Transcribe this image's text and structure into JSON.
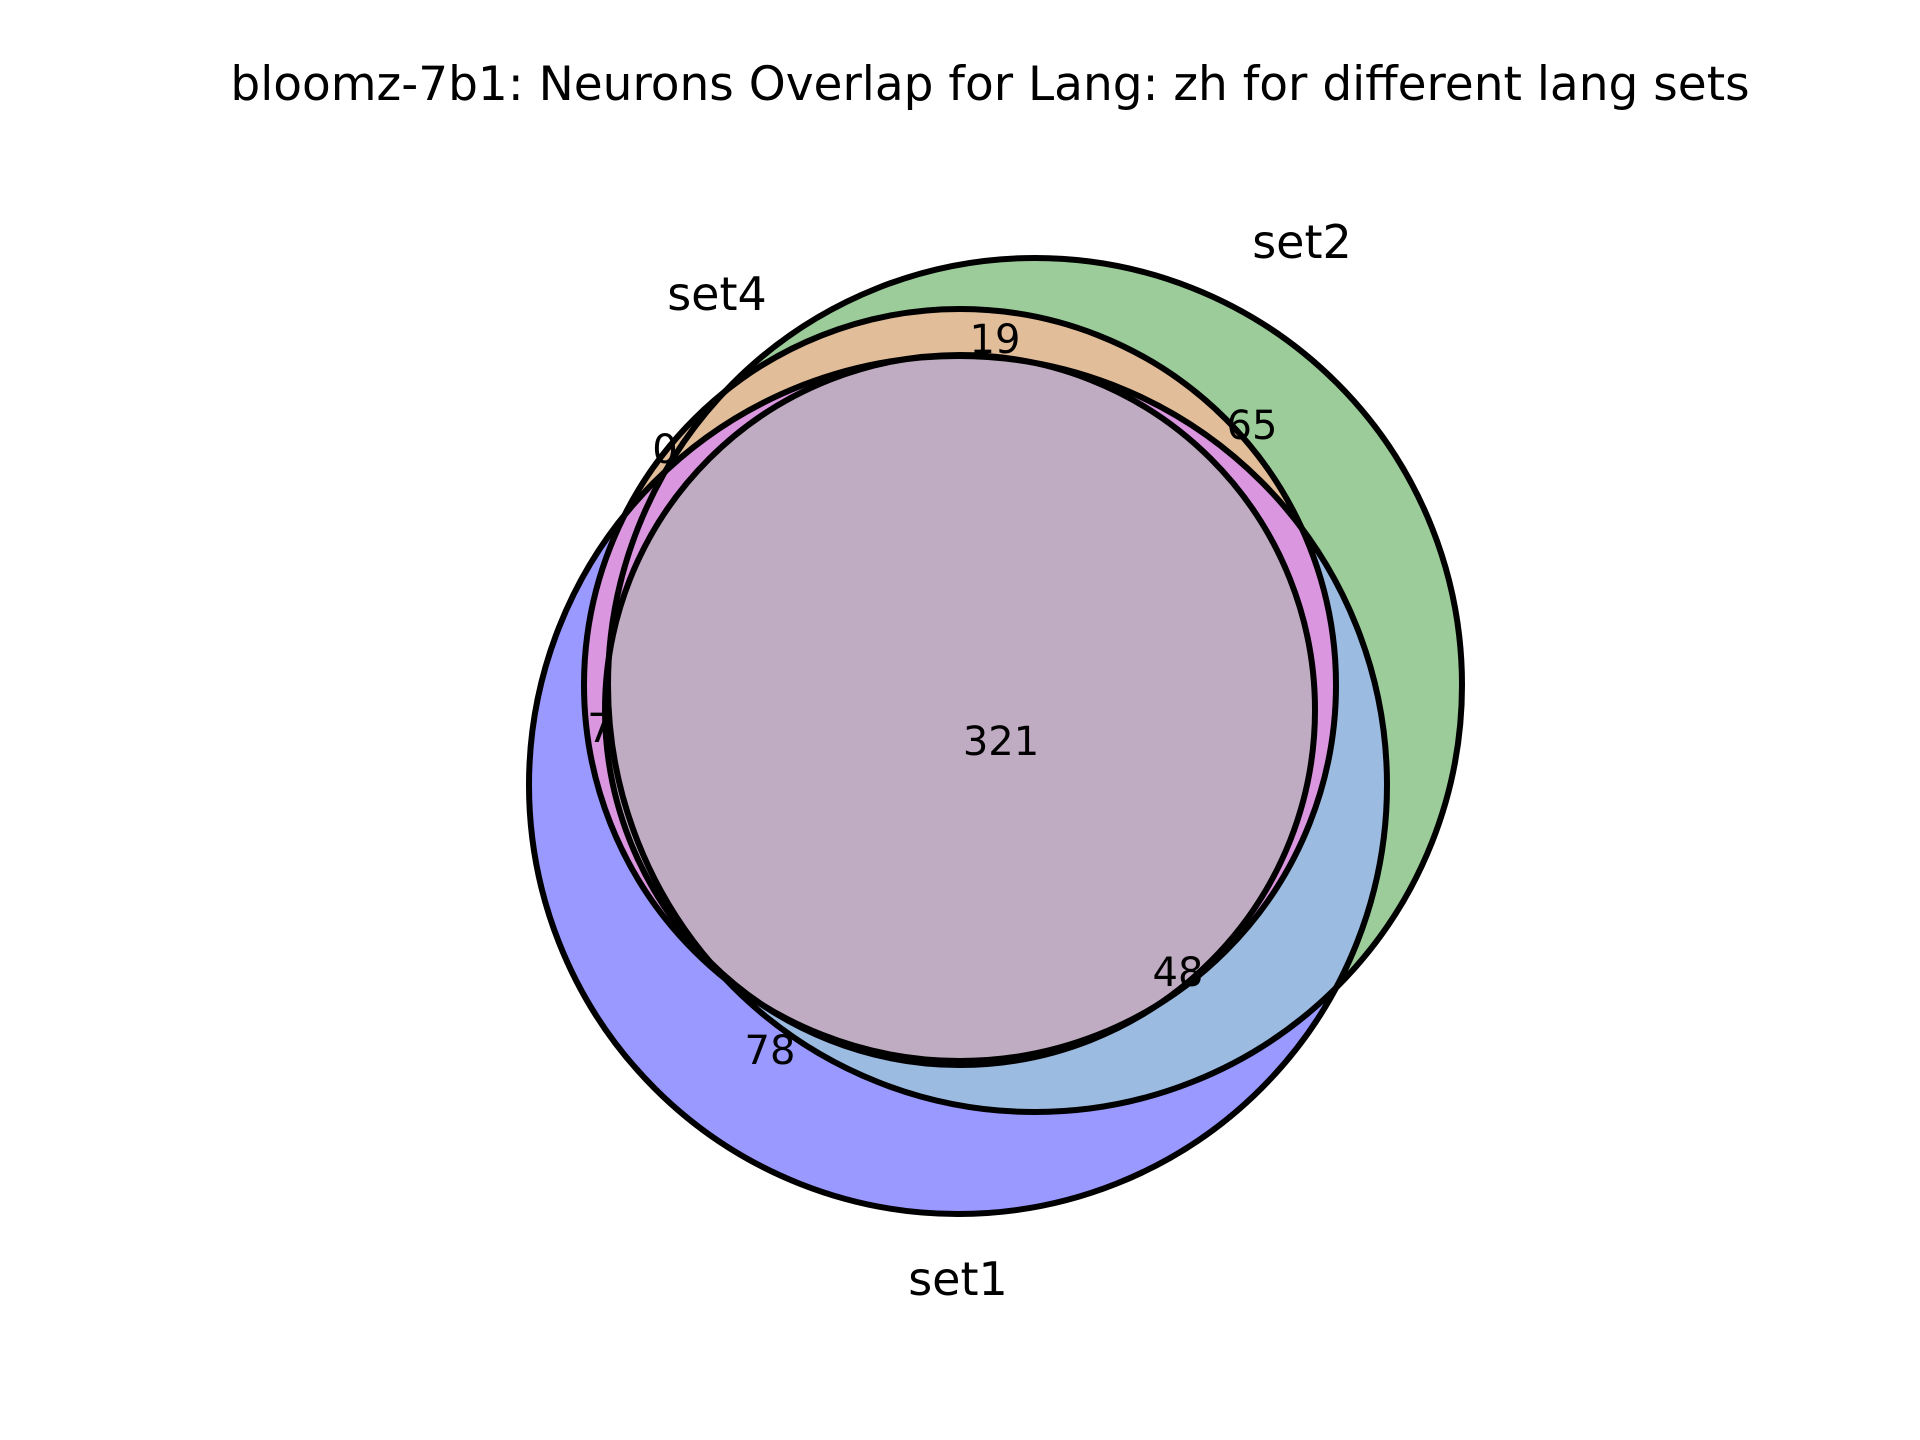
{
  "diagram": {
    "title": "bloomz-7b1: Neurons Overlap for Lang: zh for different lang sets",
    "sets": [
      {
        "id": "set1",
        "label": "set1",
        "color": "#9999ff"
      },
      {
        "id": "set2",
        "label": "set2",
        "color": "#9bcc99"
      },
      {
        "id": "set3",
        "label": "",
        "color": "#9999ff"
      },
      {
        "id": "set4",
        "label": "set4",
        "color": "#e2bd99"
      }
    ],
    "region_colors": {
      "set1_only": "#9999ff",
      "set2_only": "#9bcc99",
      "set1_set2": "#9bbbe0",
      "set4_set2": "#e2bd99",
      "set1_set4_edge": "#da96df",
      "core": "#c0acc2"
    },
    "regions": [
      {
        "id": "core",
        "value": "321"
      },
      {
        "id": "top-band",
        "value": "19"
      },
      {
        "id": "upper-right",
        "value": "65"
      },
      {
        "id": "upper-left-sliver",
        "value": "0"
      },
      {
        "id": "left-sliver",
        "value": "7"
      },
      {
        "id": "lower-right",
        "value": "48"
      },
      {
        "id": "lower-left",
        "value": "78"
      }
    ]
  }
}
